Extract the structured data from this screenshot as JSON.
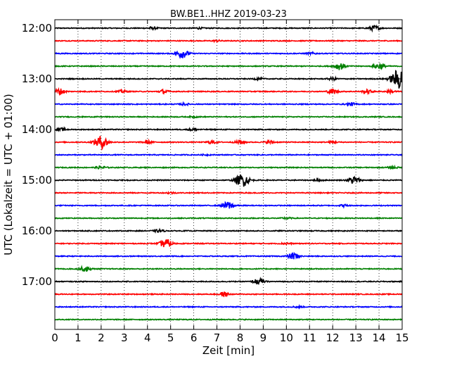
{
  "chart_data": {
    "type": "line",
    "title": "BW.BE1..HHZ 2019-03-23",
    "xlabel": "Zeit  [min]",
    "ylabel": "UTC (Lokalzeit = UTC + 01:00)",
    "xlim": [
      0,
      15
    ],
    "x_ticks": [
      "0",
      "1",
      "2",
      "3",
      "4",
      "5",
      "6",
      "7",
      "8",
      "9",
      "10",
      "11",
      "12",
      "13",
      "14",
      "15"
    ],
    "y_tick_labels": [
      "12:00",
      "13:00",
      "14:00",
      "15:00",
      "16:00",
      "17:00"
    ],
    "trace_interval_minutes": 15,
    "grid": "vertical dotted",
    "series_colors": [
      "#000000",
      "#ff0000",
      "#0000ff",
      "#008000"
    ],
    "traces": [
      {
        "start": "12:00",
        "events": [
          {
            "t": 4.2,
            "a": 0.25
          },
          {
            "t": 6.2,
            "a": 0.15
          },
          {
            "t": 13.8,
            "a": 0.5
          }
        ]
      },
      {
        "start": "12:15",
        "events": [
          {
            "t": 7.0,
            "a": 0.15
          }
        ]
      },
      {
        "start": "12:30",
        "events": [
          {
            "t": 5.5,
            "a": 0.9
          },
          {
            "t": 11.1,
            "a": 0.2
          }
        ]
      },
      {
        "start": "12:45",
        "events": [
          {
            "t": 12.3,
            "a": 0.7
          },
          {
            "t": 14.0,
            "a": 0.6
          }
        ]
      },
      {
        "start": "13:00",
        "events": [
          {
            "t": 8.8,
            "a": 0.2
          },
          {
            "t": 12.0,
            "a": 0.25
          },
          {
            "t": 14.9,
            "a": 2.1
          }
        ]
      },
      {
        "start": "13:15",
        "events": [
          {
            "t": 0.2,
            "a": 0.6
          },
          {
            "t": 2.9,
            "a": 0.25
          },
          {
            "t": 4.7,
            "a": 0.35
          },
          {
            "t": 12.0,
            "a": 0.5
          },
          {
            "t": 13.5,
            "a": 0.35
          },
          {
            "t": 14.5,
            "a": 0.3
          }
        ]
      },
      {
        "start": "13:30",
        "events": [
          {
            "t": 5.6,
            "a": 0.2
          },
          {
            "t": 12.8,
            "a": 0.3
          }
        ]
      },
      {
        "start": "13:45",
        "events": [
          {
            "t": 6.0,
            "a": 0.1
          }
        ]
      },
      {
        "start": "14:00",
        "events": [
          {
            "t": 0.3,
            "a": 0.25
          },
          {
            "t": 6.0,
            "a": 0.3
          }
        ]
      },
      {
        "start": "14:15",
        "events": [
          {
            "t": 2.0,
            "a": 1.3
          },
          {
            "t": 4.0,
            "a": 0.3
          },
          {
            "t": 6.8,
            "a": 0.3
          },
          {
            "t": 8.0,
            "a": 0.4
          },
          {
            "t": 9.3,
            "a": 0.3
          },
          {
            "t": 12.0,
            "a": 0.2
          }
        ]
      },
      {
        "start": "14:30",
        "events": [
          {
            "t": 6.5,
            "a": 0.1
          }
        ]
      },
      {
        "start": "14:45",
        "events": [
          {
            "t": 2.0,
            "a": 0.3
          },
          {
            "t": 14.6,
            "a": 0.25
          }
        ]
      },
      {
        "start": "15:00",
        "events": [
          {
            "t": 8.1,
            "a": 1.3
          },
          {
            "t": 11.4,
            "a": 0.2
          },
          {
            "t": 12.9,
            "a": 0.8
          }
        ]
      },
      {
        "start": "15:15",
        "events": [
          {
            "t": 5.0,
            "a": 0.15
          }
        ]
      },
      {
        "start": "15:30",
        "events": [
          {
            "t": 7.5,
            "a": 0.8
          },
          {
            "t": 12.5,
            "a": 0.2
          }
        ]
      },
      {
        "start": "15:45",
        "events": [
          {
            "t": 10.0,
            "a": 0.15
          }
        ]
      },
      {
        "start": "16:00",
        "events": [
          {
            "t": 4.5,
            "a": 0.25
          }
        ]
      },
      {
        "start": "16:15",
        "events": [
          {
            "t": 4.8,
            "a": 0.9
          },
          {
            "t": 10.0,
            "a": 0.2
          }
        ]
      },
      {
        "start": "16:30",
        "events": [
          {
            "t": 10.3,
            "a": 0.7
          }
        ]
      },
      {
        "start": "16:45",
        "events": [
          {
            "t": 1.3,
            "a": 0.5
          }
        ]
      },
      {
        "start": "17:00",
        "events": [
          {
            "t": 8.8,
            "a": 0.6
          }
        ]
      },
      {
        "start": "17:15",
        "events": [
          {
            "t": 7.3,
            "a": 0.45
          }
        ]
      },
      {
        "start": "17:30",
        "events": [
          {
            "t": 10.5,
            "a": 0.15
          }
        ]
      },
      {
        "start": "17:45",
        "events": []
      }
    ]
  }
}
